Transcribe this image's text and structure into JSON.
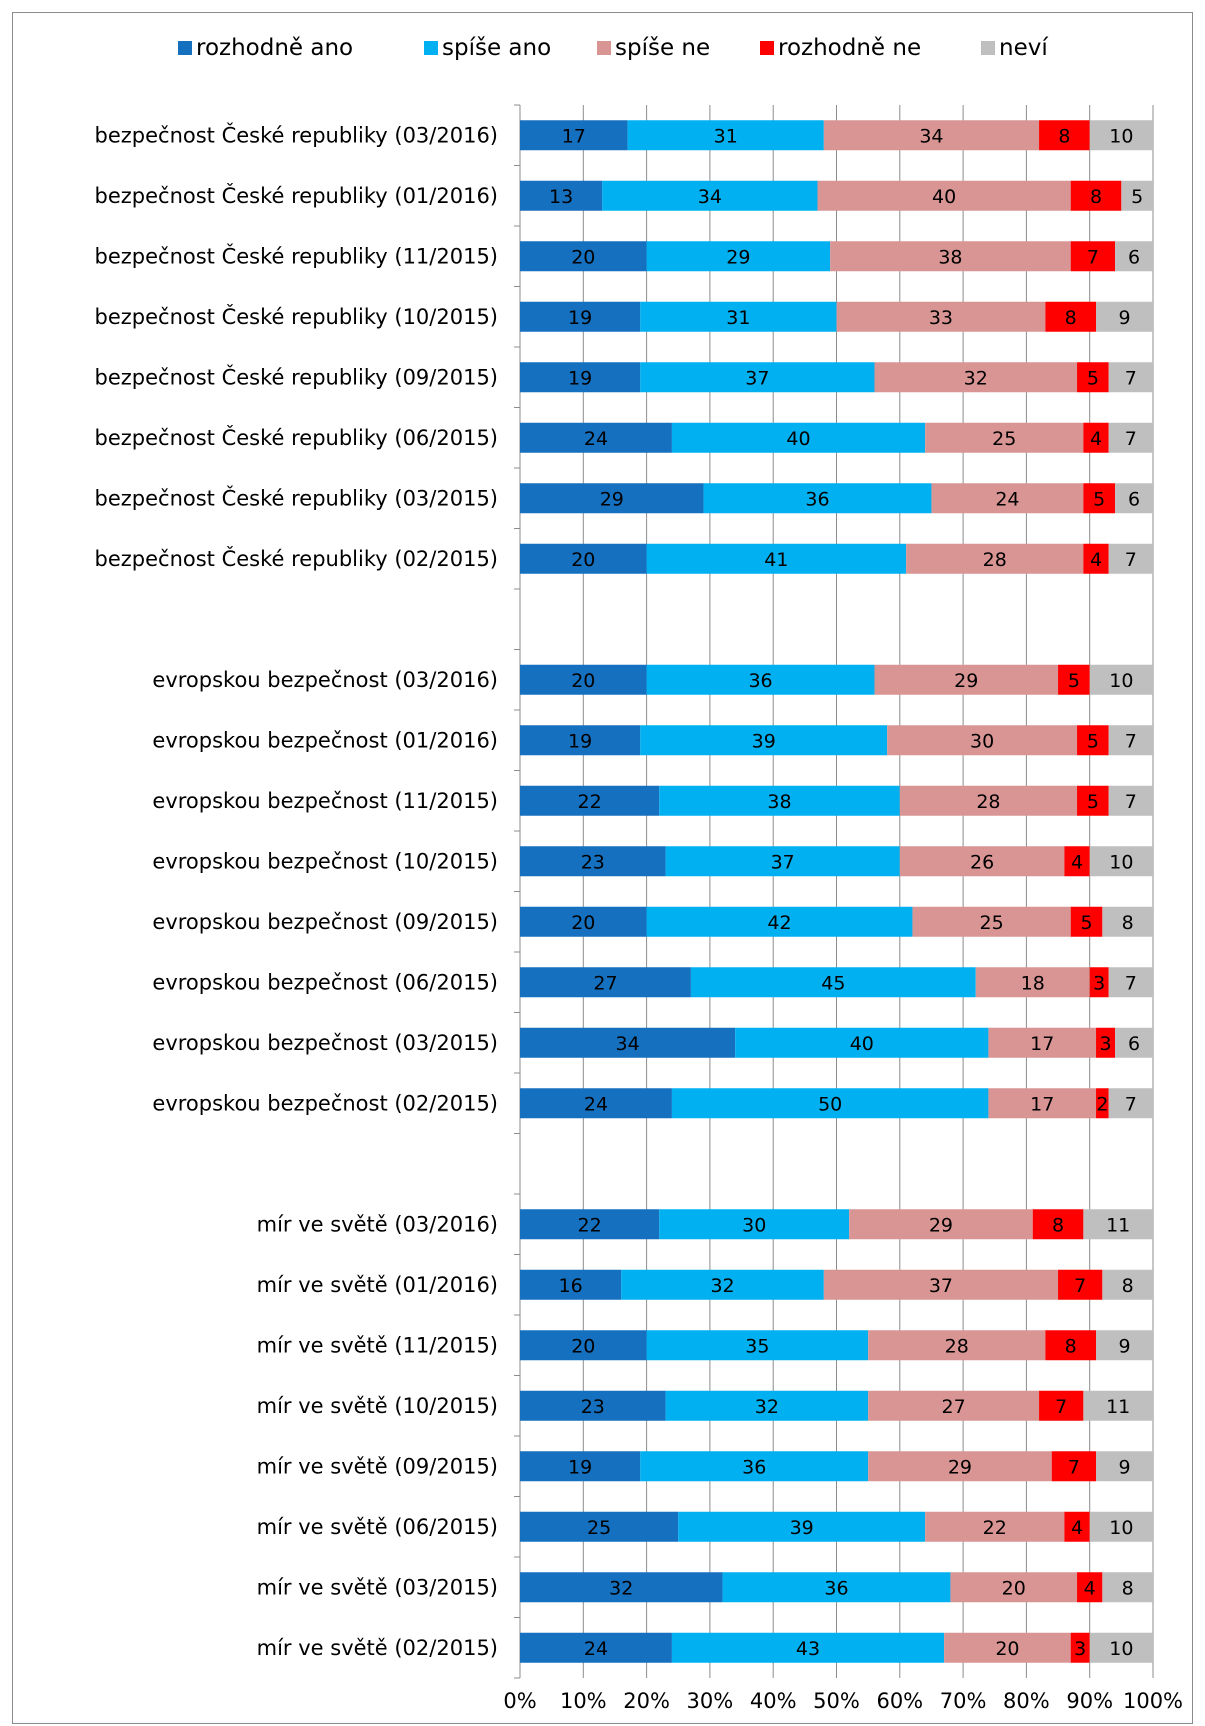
{
  "chart_data": {
    "type": "bar",
    "orientation": "horizontal",
    "stacked": true,
    "percent_stacked": true,
    "legend_position": "top",
    "grid": true,
    "xlim": [
      0,
      100
    ],
    "x_ticks": [
      "0%",
      "10%",
      "20%",
      "30%",
      "40%",
      "50%",
      "60%",
      "70%",
      "80%",
      "90%",
      "100%"
    ],
    "series": [
      {
        "name": "rozhodně ano",
        "color": "#1570C0"
      },
      {
        "name": "spíše ano",
        "color": "#00B0F0"
      },
      {
        "name": "spíše ne",
        "color": "#D99594"
      },
      {
        "name": "rozhodně ne",
        "color": "#FF0000"
      },
      {
        "name": "neví",
        "color": "#BFBFBF"
      }
    ],
    "categories": [
      {
        "label": "bezpečnost České republiky (03/2016)",
        "values": [
          17,
          31,
          34,
          8,
          10
        ]
      },
      {
        "label": "bezpečnost České republiky (01/2016)",
        "values": [
          13,
          34,
          40,
          8,
          5
        ]
      },
      {
        "label": "bezpečnost České republiky (11/2015)",
        "values": [
          20,
          29,
          38,
          7,
          6
        ]
      },
      {
        "label": "bezpečnost České republiky (10/2015)",
        "values": [
          19,
          31,
          33,
          8,
          9
        ]
      },
      {
        "label": "bezpečnost České republiky (09/2015)",
        "values": [
          19,
          37,
          32,
          5,
          7
        ]
      },
      {
        "label": "bezpečnost České republiky (06/2015)",
        "values": [
          24,
          40,
          25,
          4,
          7
        ]
      },
      {
        "label": "bezpečnost České republiky (03/2015)",
        "values": [
          29,
          36,
          24,
          5,
          6
        ]
      },
      {
        "label": "bezpečnost České republiky (02/2015)",
        "values": [
          20,
          41,
          28,
          4,
          7
        ]
      },
      {
        "label": "",
        "values": []
      },
      {
        "label": "evropskou bezpečnost (03/2016)",
        "values": [
          20,
          36,
          29,
          5,
          10
        ]
      },
      {
        "label": "evropskou bezpečnost (01/2016)",
        "values": [
          19,
          39,
          30,
          5,
          7
        ]
      },
      {
        "label": "evropskou bezpečnost (11/2015)",
        "values": [
          22,
          38,
          28,
          5,
          7
        ]
      },
      {
        "label": "evropskou bezpečnost (10/2015)",
        "values": [
          23,
          37,
          26,
          4,
          10
        ]
      },
      {
        "label": "evropskou bezpečnost (09/2015)",
        "values": [
          20,
          42,
          25,
          5,
          8
        ]
      },
      {
        "label": "evropskou bezpečnost (06/2015)",
        "values": [
          27,
          45,
          18,
          3,
          7
        ]
      },
      {
        "label": "evropskou bezpečnost (03/2015)",
        "values": [
          34,
          40,
          17,
          3,
          6
        ]
      },
      {
        "label": "evropskou bezpečnost (02/2015)",
        "values": [
          24,
          50,
          17,
          2,
          7
        ]
      },
      {
        "label": "",
        "values": []
      },
      {
        "label": "mír ve světě (03/2016)",
        "values": [
          22,
          30,
          29,
          8,
          11
        ]
      },
      {
        "label": "mír ve světě (01/2016)",
        "values": [
          16,
          32,
          37,
          7,
          8
        ]
      },
      {
        "label": "mír ve světě (11/2015)",
        "values": [
          20,
          35,
          28,
          8,
          9
        ]
      },
      {
        "label": "mír ve světě (10/2015)",
        "values": [
          23,
          32,
          27,
          7,
          11
        ]
      },
      {
        "label": "mír ve světě (09/2015)",
        "values": [
          19,
          36,
          29,
          7,
          9
        ]
      },
      {
        "label": "mír ve světě (06/2015)",
        "values": [
          25,
          39,
          22,
          4,
          10
        ]
      },
      {
        "label": "mír ve světě (03/2015)",
        "values": [
          32,
          36,
          20,
          4,
          8
        ]
      },
      {
        "label": "mír ve světě (02/2015)",
        "values": [
          24,
          43,
          20,
          3,
          10
        ]
      }
    ]
  }
}
